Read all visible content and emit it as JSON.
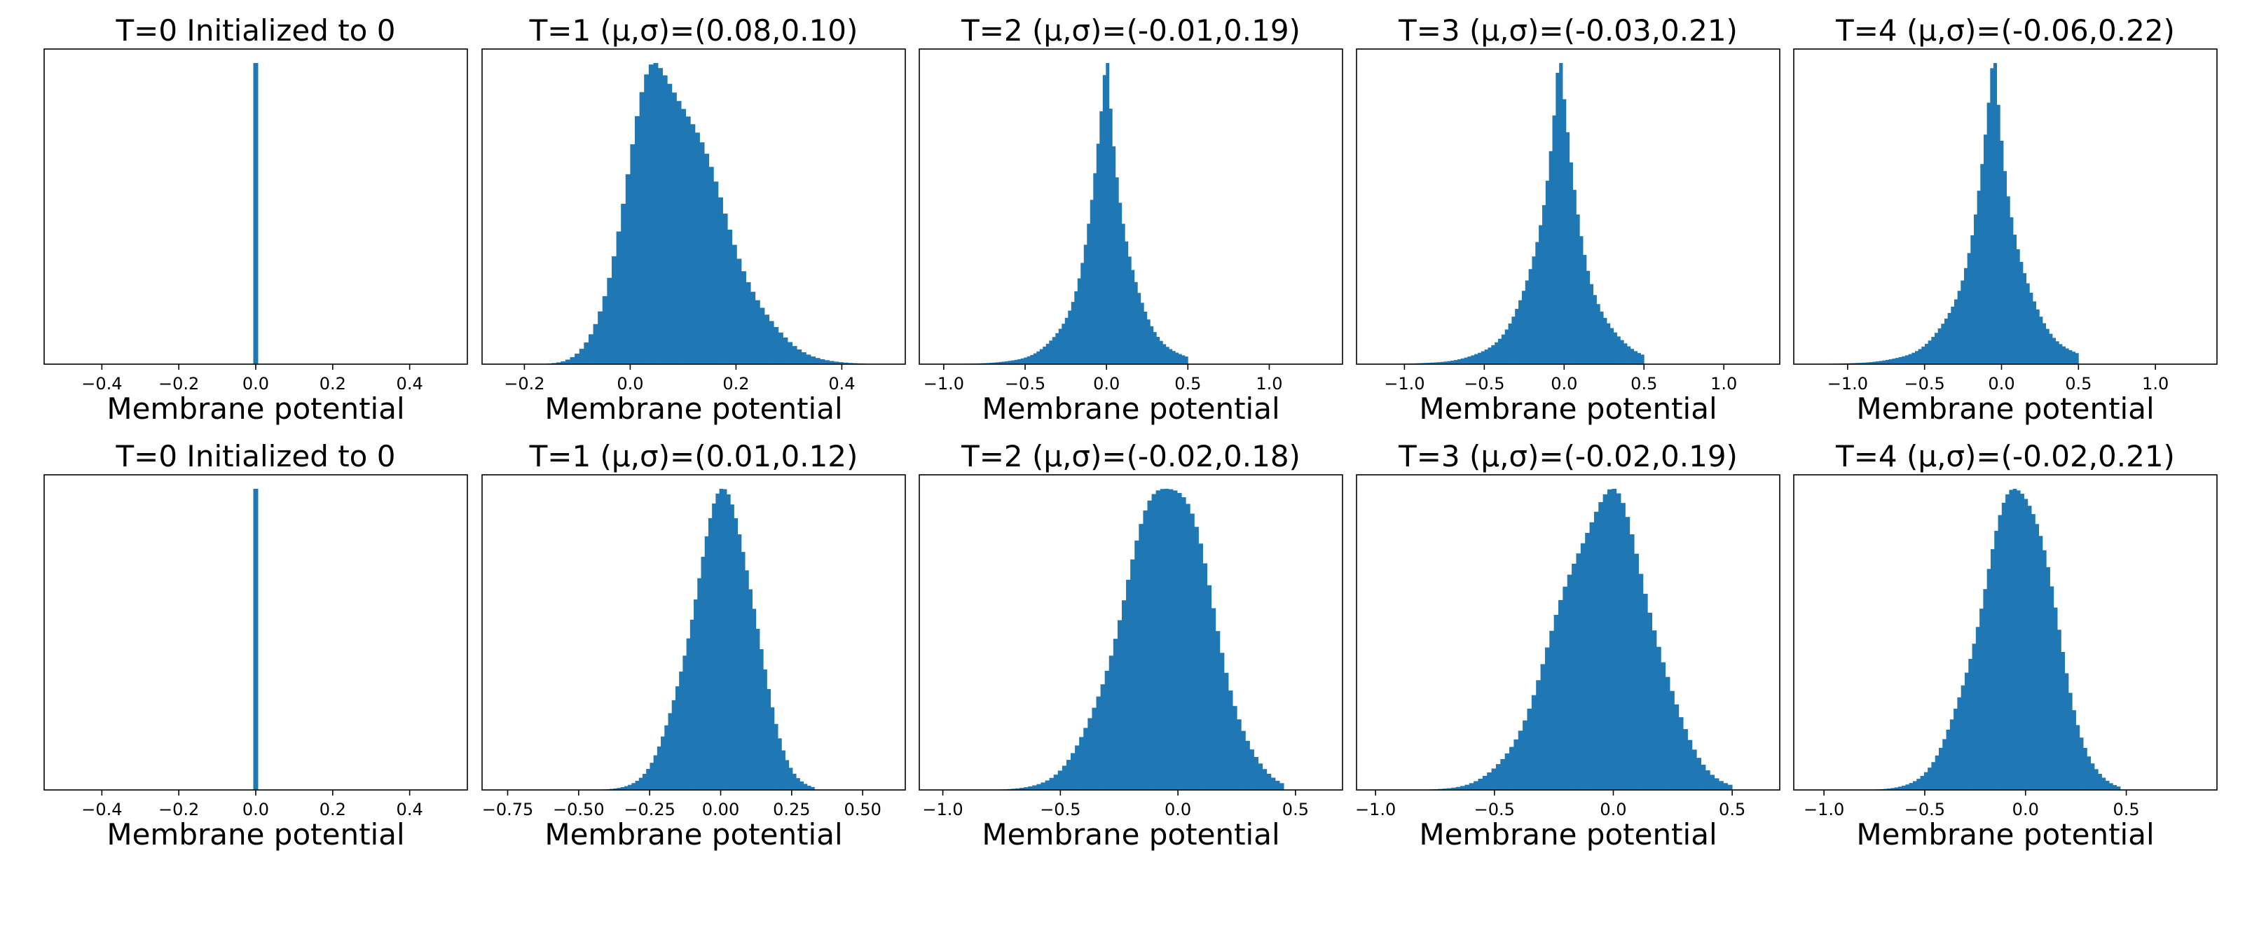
{
  "chart_data": [
    {
      "type": "histogram",
      "row": 0,
      "col": 0,
      "title": "T=0 Initialized to 0",
      "xlabel": "Membrane potential",
      "xlim": [
        -0.55,
        0.55
      ],
      "xticks": [
        -0.4,
        -0.2,
        0.0,
        0.2,
        0.4
      ],
      "xtick_labels": [
        "−0.4",
        "−0.2",
        "0.0",
        "0.2",
        "0.4"
      ],
      "kind": "spike",
      "spike_at": 0.0
    },
    {
      "type": "histogram",
      "row": 0,
      "col": 1,
      "title": "T=1 (μ,σ)=(0.08,0.10)",
      "xlabel": "Membrane potential",
      "mean": 0.08,
      "std": 0.1,
      "xlim": [
        -0.28,
        0.52
      ],
      "xticks": [
        -0.2,
        0.0,
        0.2,
        0.4
      ],
      "xtick_labels": [
        "−0.2",
        "0.0",
        "0.2",
        "0.4"
      ],
      "kind": "skewed",
      "mode": 0.05,
      "sigma_left": 0.058,
      "sigma_right": 0.11,
      "data_min": -0.21,
      "data_max": 0.49
    },
    {
      "type": "histogram",
      "row": 0,
      "col": 2,
      "title": "T=2 (μ,σ)=(-0.01,0.19)",
      "xlabel": "Membrane potential",
      "mean": -0.01,
      "std": 0.19,
      "xlim": [
        -1.15,
        1.45
      ],
      "xticks": [
        -1.0,
        -0.5,
        0.0,
        0.5,
        1.0
      ],
      "xtick_labels": [
        "−1.0",
        "−0.5",
        "0.0",
        "0.5",
        "1.0"
      ],
      "kind": "laplace",
      "mode": 0.0,
      "scale": 0.13,
      "data_min": -1.05,
      "data_max": 0.5
    },
    {
      "type": "histogram",
      "row": 0,
      "col": 3,
      "title": "T=3 (μ,σ)=(-0.03,0.21)",
      "xlabel": "Membrane potential",
      "mean": -0.03,
      "std": 0.21,
      "xlim": [
        -1.3,
        1.35
      ],
      "xticks": [
        -1.0,
        -0.5,
        0.0,
        0.5,
        1.0
      ],
      "xtick_labels": [
        "−1.0",
        "−0.5",
        "0.0",
        "0.5",
        "1.0"
      ],
      "kind": "laplace",
      "mode": -0.03,
      "scale": 0.15,
      "data_min": -1.2,
      "data_max": 0.5
    },
    {
      "type": "histogram",
      "row": 0,
      "col": 4,
      "title": "T=4 (μ,σ)=(-0.06,0.22)",
      "xlabel": "Membrane potential",
      "mean": -0.06,
      "std": 0.22,
      "xlim": [
        -1.35,
        1.4
      ],
      "xticks": [
        -1.0,
        -0.5,
        0.0,
        0.5,
        1.0
      ],
      "xtick_labels": [
        "−1.0",
        "−0.5",
        "0.0",
        "0.5",
        "1.0"
      ],
      "kind": "laplace",
      "mode": -0.05,
      "scale": 0.16,
      "data_min": -1.2,
      "data_max": 0.5
    },
    {
      "type": "histogram",
      "row": 1,
      "col": 0,
      "title": "T=0 Initialized to 0",
      "xlabel": "Membrane potential",
      "xlim": [
        -0.55,
        0.55
      ],
      "xticks": [
        -0.4,
        -0.2,
        0.0,
        0.2,
        0.4
      ],
      "xtick_labels": [
        "−0.4",
        "−0.2",
        "0.0",
        "0.2",
        "0.4"
      ],
      "kind": "spike",
      "spike_at": 0.0
    },
    {
      "type": "histogram",
      "row": 1,
      "col": 1,
      "title": "T=1 (μ,σ)=(0.01,0.12)",
      "xlabel": "Membrane potential",
      "mean": 0.01,
      "std": 0.12,
      "xlim": [
        -0.84,
        0.65
      ],
      "xticks": [
        -0.75,
        -0.5,
        -0.25,
        0.0,
        0.25,
        0.5
      ],
      "xtick_labels": [
        "−0.75",
        "−0.50",
        "−0.25",
        "0.00",
        "0.25",
        "0.50"
      ],
      "kind": "skewed",
      "mode": 0.02,
      "sigma_left": 0.12,
      "sigma_right": 0.1,
      "data_min": -0.7,
      "data_max": 0.33
    },
    {
      "type": "histogram",
      "row": 1,
      "col": 2,
      "title": "T=2 (μ,σ)=(-0.02,0.18)",
      "xlabel": "Membrane potential",
      "mean": -0.02,
      "std": 0.18,
      "xlim": [
        -1.1,
        0.7
      ],
      "xticks": [
        -1.0,
        -0.5,
        0.0,
        0.5
      ],
      "xtick_labels": [
        "−1.0",
        "−0.5",
        "0.0",
        "0.5"
      ],
      "kind": "skewed",
      "mode": -0.03,
      "sigma_left": 0.2,
      "sigma_right": 0.17,
      "data_min": -1.0,
      "data_max": 0.45
    },
    {
      "type": "histogram",
      "row": 1,
      "col": 3,
      "title": "T=3 (μ,σ)=(-0.02,0.19)",
      "xlabel": "Membrane potential",
      "mean": -0.02,
      "std": 0.19,
      "xlim": [
        -1.08,
        0.7
      ],
      "xticks": [
        -1.0,
        -0.5,
        0.0,
        0.5
      ],
      "xtick_labels": [
        "−1.0",
        "−0.5",
        "0.0",
        "0.5"
      ],
      "kind": "skewed",
      "mode": -0.02,
      "sigma_left": 0.21,
      "sigma_right": 0.18,
      "data_min": -1.0,
      "data_max": 0.5
    },
    {
      "type": "histogram",
      "row": 1,
      "col": 4,
      "title": "T=4 (μ,σ)=(-0.02,0.21)",
      "xlabel": "Membrane potential",
      "mean": -0.02,
      "std": 0.21,
      "xlim": [
        -1.15,
        0.95
      ],
      "xticks": [
        -1.0,
        -0.5,
        0.0,
        0.5
      ],
      "xtick_labels": [
        "−1.0",
        "−0.5",
        "0.0",
        "0.5"
      ],
      "kind": "skewed",
      "mode": -0.02,
      "sigma_left": 0.2,
      "sigma_right": 0.16,
      "data_min": -1.0,
      "data_max": 0.47
    }
  ],
  "style": {
    "bar_color": "#1f77b4",
    "frame_color": "#000000",
    "background": "#ffffff"
  }
}
